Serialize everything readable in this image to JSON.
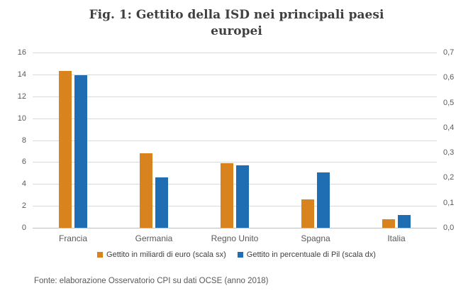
{
  "chart_data": {
    "type": "bar",
    "title": "Fig. 1: Gettito della ISD nei principali paesi europei",
    "categories": [
      "Francia",
      "Germania",
      "Regno Unito",
      "Spagna",
      "Italia"
    ],
    "series": [
      {
        "name": "Gettito in miliardi di euro (scala sx)",
        "axis": "left",
        "color": "#d9831f",
        "values": [
          14.3,
          6.8,
          5.9,
          2.6,
          0.8
        ]
      },
      {
        "name": "Gettito in percentuale di Pil (scala dx)",
        "axis": "right",
        "color": "#1f6db2",
        "values": [
          0.61,
          0.2,
          0.25,
          0.22,
          0.05
        ]
      }
    ],
    "left_axis": {
      "min": 0,
      "max": 16,
      "ticks": [
        "16",
        "14",
        "12",
        "10",
        "8",
        "6",
        "4",
        "2",
        "0"
      ]
    },
    "right_axis": {
      "min": 0,
      "max": 0.7,
      "ticks": [
        "0,7",
        "0,6",
        "0,5",
        "0,4",
        "0,3",
        "0,2",
        "0,1",
        "0,0"
      ]
    },
    "grid": true,
    "legend_position": "bottom"
  },
  "footer": {
    "source": "Fonte: elaborazione Osservatorio CPI su dati OCSE (anno 2018)"
  }
}
